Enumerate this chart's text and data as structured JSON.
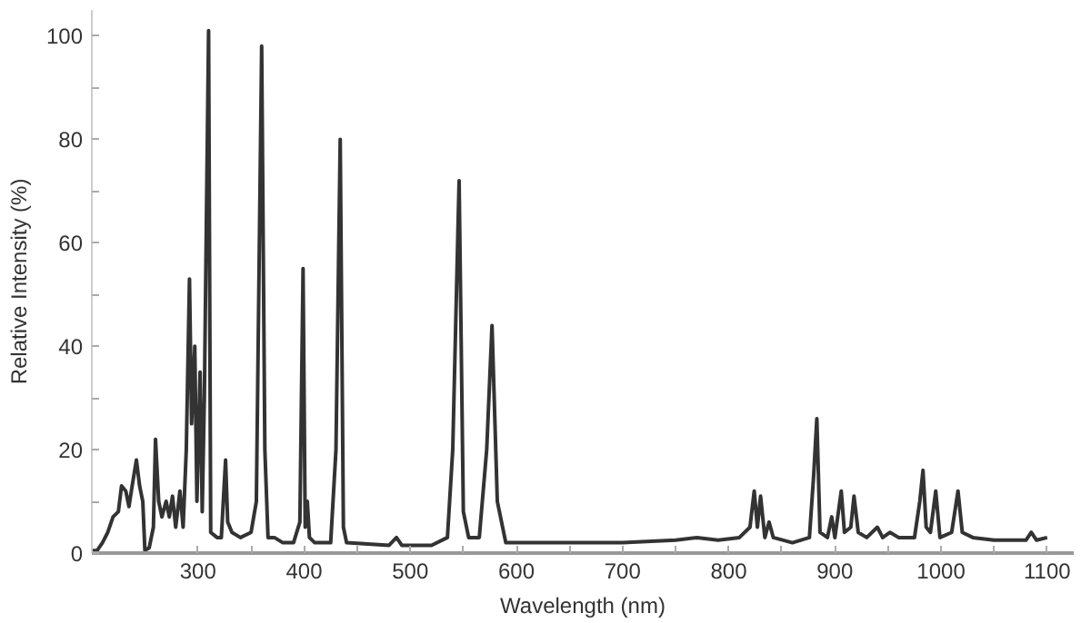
{
  "chart_data": {
    "type": "line",
    "xlabel": "Wavelength (nm)",
    "ylabel": "Relative Intensity (%)",
    "x": [
      200,
      205,
      210,
      215,
      220,
      225,
      228,
      232,
      235,
      238,
      242,
      245,
      248,
      250,
      254,
      258,
      260,
      263,
      266,
      270,
      273,
      276,
      279,
      283,
      286,
      289,
      292,
      294,
      297,
      299,
      302,
      304,
      306,
      310,
      312,
      318,
      322,
      326,
      328,
      332,
      340,
      350,
      355,
      360,
      363,
      366,
      372,
      380,
      390,
      396,
      399,
      401,
      403,
      405,
      410,
      425,
      430,
      434,
      437,
      440,
      480,
      487,
      492,
      520,
      535,
      540,
      546,
      550,
      555,
      565,
      572,
      577,
      582,
      590,
      650,
      700,
      750,
      770,
      790,
      810,
      820,
      824,
      827,
      830,
      834,
      838,
      842,
      860,
      876,
      880,
      883,
      886,
      893,
      897,
      900,
      906,
      909,
      915,
      918,
      922,
      930,
      940,
      945,
      952,
      960,
      975,
      980,
      983,
      986,
      990,
      995,
      999,
      1010,
      1016,
      1020,
      1030,
      1050,
      1080,
      1085,
      1090,
      1100
    ],
    "series": [
      {
        "color": "#333333",
        "values": [
          0.5,
          0.5,
          2,
          4,
          7,
          8,
          13,
          12,
          9,
          13,
          18,
          13,
          10,
          0.5,
          1,
          5,
          22,
          10,
          7,
          10,
          7,
          11,
          5,
          12,
          5,
          20,
          53,
          25,
          40,
          10,
          35,
          8,
          30,
          101,
          4,
          3,
          3,
          18,
          6,
          4,
          3,
          4,
          10,
          98,
          20,
          3,
          3,
          2,
          2,
          6,
          55,
          5,
          10,
          3,
          2,
          2,
          20,
          80,
          5,
          2,
          1.5,
          3,
          1.5,
          1.5,
          3,
          20,
          72,
          8,
          3,
          3,
          20,
          44,
          10,
          2,
          2,
          2,
          2.5,
          3,
          2.5,
          3,
          5,
          12,
          5,
          11,
          3,
          6,
          3,
          2,
          3,
          15,
          26,
          4,
          3,
          7,
          3,
          12,
          4,
          5,
          11,
          4,
          3,
          5,
          3,
          4,
          3,
          3,
          10,
          16,
          5,
          4,
          12,
          3,
          4,
          12,
          4,
          3,
          2.5,
          2.5,
          4,
          2.5,
          3
        ]
      }
    ],
    "xlim": [
      200,
      1125
    ],
    "ylim": [
      0,
      105
    ],
    "xticks": [
      300,
      {
        "value": 350,
        "label": null
      },
      400,
      {
        "value": 450,
        "label": null
      },
      500,
      {
        "value": 550,
        "label": null
      },
      600,
      {
        "value": 650,
        "label": null
      },
      700,
      {
        "value": 750,
        "label": null
      },
      800,
      {
        "value": 850,
        "label": null
      },
      900,
      {
        "value": 950,
        "label": null
      },
      1000,
      {
        "value": 1050,
        "label": null
      },
      1100
    ],
    "yticks": [
      0,
      {
        "value": 10,
        "label": null
      },
      20,
      {
        "value": 30,
        "label": null
      },
      40,
      {
        "value": 50,
        "label": null
      },
      60,
      {
        "value": 70,
        "label": null
      },
      80,
      {
        "value": 90,
        "label": null
      },
      100
    ],
    "grid": false,
    "marker": "none",
    "line_style": "solid"
  }
}
